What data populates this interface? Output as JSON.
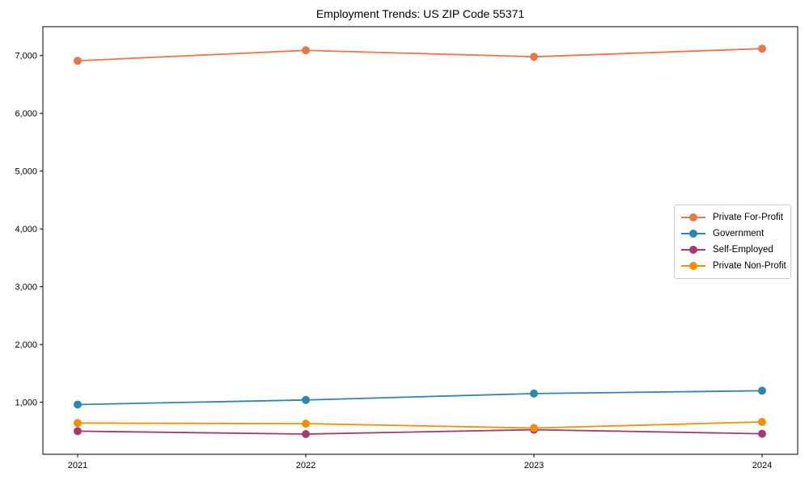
{
  "chart_data": {
    "type": "line",
    "title": "Employment Trends: US ZIP Code 55371",
    "categories": [
      "2021",
      "2022",
      "2023",
      "2024"
    ],
    "series": [
      {
        "name": "Private For-Profit",
        "color": "#E8764B",
        "values": [
          6910,
          7090,
          6980,
          7120
        ]
      },
      {
        "name": "Government",
        "color": "#2E86AB",
        "values": [
          960,
          1040,
          1150,
          1200
        ]
      },
      {
        "name": "Self-Employed",
        "color": "#A23B72",
        "values": [
          500,
          450,
          525,
          455
        ]
      },
      {
        "name": "Private Non-Profit",
        "color": "#F18F01",
        "values": [
          640,
          630,
          555,
          660
        ]
      }
    ],
    "xlabel": "",
    "ylabel": "",
    "ylim": [
      100,
      7500
    ],
    "yticks": [
      1000,
      2000,
      3000,
      4000,
      5000,
      6000,
      7000
    ],
    "ytick_labels": [
      "1,000",
      "2,000",
      "3,000",
      "4,000",
      "5,000",
      "6,000",
      "7,000"
    ],
    "grid": false,
    "legend_position": "center-right",
    "axis_color": "#000000",
    "background_color": "#ffffff"
  }
}
